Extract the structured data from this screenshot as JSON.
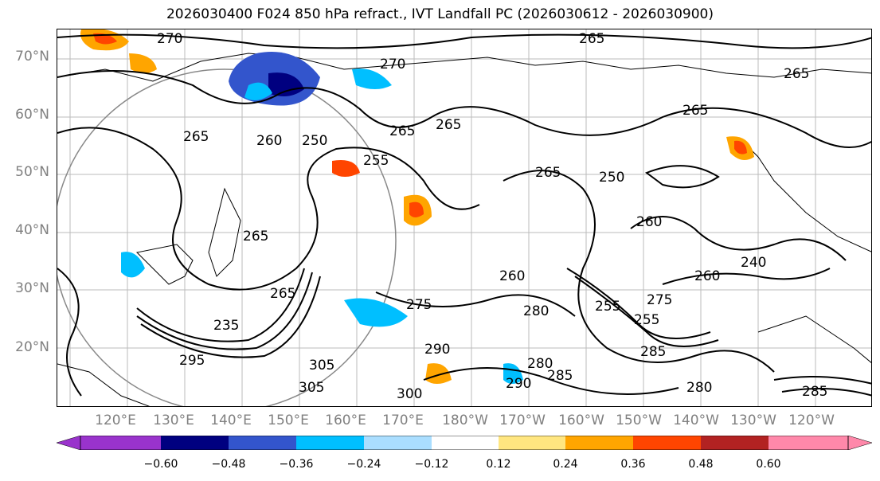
{
  "title": "2026030400 F024 850 hPa refract., IVT Landfall PC (2026030612 - 2026030900)",
  "latitude_labels": [
    "70°N",
    "60°N",
    "50°N",
    "40°N",
    "30°N",
    "20°N"
  ],
  "longitude_labels": [
    "120°E",
    "130°E",
    "140°E",
    "150°E",
    "160°E",
    "170°E",
    "180°W",
    "170°W",
    "160°W",
    "150°W",
    "140°W",
    "130°W",
    "120°W"
  ],
  "contour_labels": [
    "270",
    "265",
    "270",
    "265",
    "265",
    "265",
    "265",
    "260",
    "250",
    "255",
    "265",
    "265",
    "265",
    "260",
    "250",
    "260",
    "240",
    "265",
    "275",
    "255",
    "260",
    "275",
    "285",
    "280",
    "255",
    "235",
    "295",
    "305",
    "300",
    "305",
    "290",
    "280",
    "290",
    "285",
    "280",
    "285"
  ],
  "colorbar": {
    "ticks": [
      "−0.60",
      "−0.48",
      "−0.36",
      "−0.24",
      "−0.12",
      "0.12",
      "0.24",
      "0.36",
      "0.48",
      "0.60"
    ],
    "colors": [
      "#9933cc",
      "#000080",
      "#3355cc",
      "#00bfff",
      "#aadeff",
      "#ffffff",
      "#ffe680",
      "#ffa500",
      "#ff4500",
      "#b22222",
      "#ff88aa"
    ]
  }
}
